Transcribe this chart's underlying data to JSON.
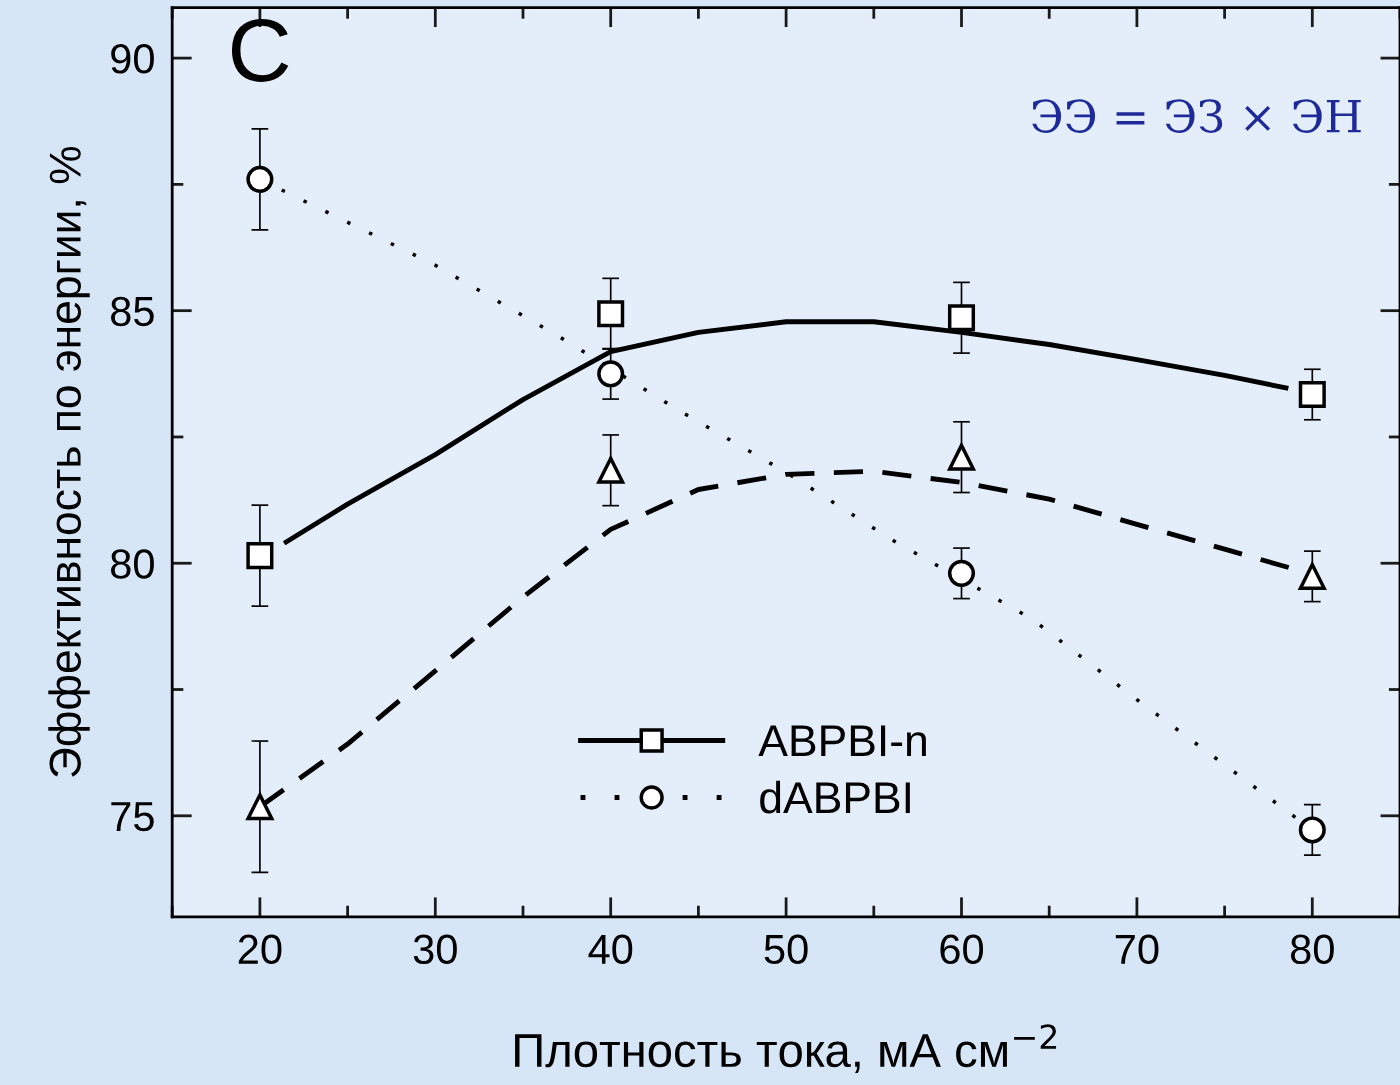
{
  "chart_data": {
    "type": "scatter",
    "xlabel": "Плотность тока, мА см$^{−2}$",
    "ylabel": "Эффективность по энергии, %",
    "annotations": [
      "C",
      "ЭЭ = ЭЗ × ЭН"
    ],
    "xlim": [
      15,
      85
    ],
    "xticks": [
      20,
      30,
      40,
      50,
      60,
      70,
      80
    ],
    "ylim": [
      73,
      91
    ],
    "yticks": [
      75,
      80,
      85,
      90
    ],
    "grid": false,
    "legend": "bottom",
    "x": [
      20,
      40,
      60,
      80
    ],
    "series": [
      {
        "name": "ABPBI-n",
        "color": "#000000",
        "marker": "square",
        "line_style": "solid",
        "values": [
          80.15,
          84.94,
          84.86,
          83.34
        ],
        "errors": [
          1.0,
          0.7,
          0.7,
          0.5
        ]
      },
      {
        "name": "dABPBI",
        "color": "#000000",
        "marker": "circle",
        "line_style": "dotted",
        "values": [
          87.6,
          83.75,
          79.8,
          74.72
        ],
        "errors": [
          1.0,
          0.5,
          0.5,
          0.5
        ]
      },
      {
        "color": "#000000",
        "marker": "triangle",
        "values": [
          75.18,
          81.84,
          82.1,
          79.74
        ],
        "errors": [
          1.3,
          0.7,
          0.7,
          0.5
        ]
      },
      {
        "type": "line",
        "color": "#000000",
        "line_style": "solid",
        "x": [
          21.5,
          25,
          30,
          35,
          40,
          45,
          50,
          55,
          60,
          65,
          70,
          75,
          78.5
        ],
        "values": [
          80.42,
          81.17,
          82.15,
          83.24,
          84.19,
          84.57,
          84.78,
          84.78,
          84.57,
          84.33,
          84.03,
          83.72,
          83.47
        ]
      },
      {
        "type": "line",
        "color": "#000000",
        "line_style": "dotted",
        "x": [
          20,
          30,
          37,
          44,
          50,
          56,
          64,
          70,
          80
        ],
        "values": [
          87.6,
          85.9,
          84.5,
          83.0,
          81.8,
          80.47,
          78.9,
          77.3,
          74.72
        ]
      },
      {
        "type": "line",
        "color": "#000000",
        "line_style": "dashed",
        "x": [
          20,
          25,
          30,
          35,
          40,
          45,
          50,
          55,
          60,
          65,
          70,
          75,
          80
        ],
        "values": [
          75.18,
          76.42,
          77.87,
          79.33,
          80.67,
          81.46,
          81.76,
          81.82,
          81.6,
          81.27,
          80.77,
          80.28,
          79.78
        ]
      }
    ]
  }
}
